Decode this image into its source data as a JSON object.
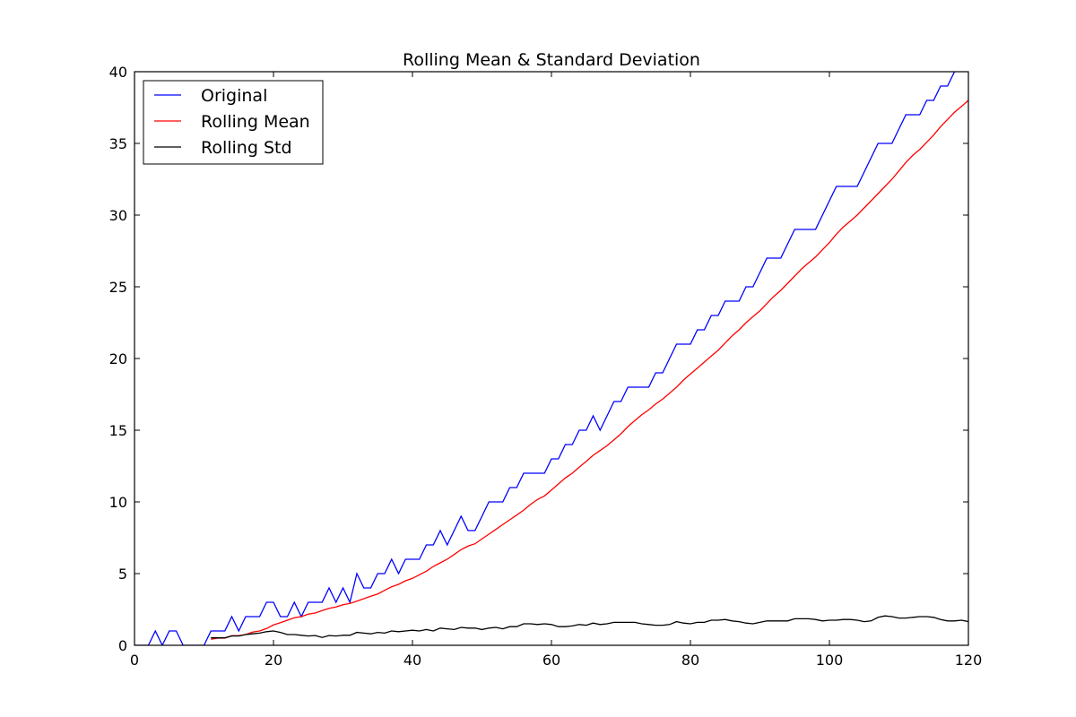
{
  "chart_data": {
    "type": "line",
    "title": "Rolling Mean & Standard Deviation",
    "xlabel": "",
    "ylabel": "",
    "xlim": [
      0,
      120
    ],
    "ylim": [
      0,
      40
    ],
    "xticks": [
      0,
      20,
      40,
      60,
      80,
      100,
      120
    ],
    "yticks": [
      0,
      5,
      10,
      15,
      20,
      25,
      30,
      35,
      40
    ],
    "grid": false,
    "legend_position": "upper-left",
    "series": [
      {
        "name": "Original",
        "color": "#0000ff",
        "x": [
          0,
          1,
          2,
          3,
          4,
          5,
          6,
          7,
          8,
          9,
          10,
          11,
          12,
          13,
          14,
          15,
          16,
          17,
          18,
          19,
          20,
          21,
          22,
          23,
          24,
          25,
          26,
          27,
          28,
          29,
          30,
          31,
          32,
          33,
          34,
          35,
          36,
          37,
          38,
          39,
          40,
          41,
          42,
          43,
          44,
          45,
          46,
          47,
          48,
          49,
          50,
          51,
          52,
          53,
          54,
          55,
          56,
          57,
          58,
          59,
          60,
          61,
          62,
          63,
          64,
          65,
          66,
          67,
          68,
          69,
          70,
          71,
          72,
          73,
          74,
          75,
          76,
          77,
          78,
          79,
          80,
          81,
          82,
          83,
          84,
          85,
          86,
          87,
          88,
          89,
          90,
          91,
          92,
          93,
          94,
          95,
          96,
          97,
          98,
          99,
          100,
          101,
          102,
          103,
          104,
          105,
          106,
          107,
          108,
          109,
          110,
          111,
          112,
          113,
          114,
          115,
          116,
          117,
          118
        ],
        "y": [
          0,
          0,
          0,
          1,
          0,
          1,
          1,
          0,
          0,
          0,
          0,
          1,
          1,
          1,
          2,
          1,
          2,
          2,
          2,
          3,
          3,
          2,
          2,
          3,
          2,
          3,
          3,
          3,
          4,
          3,
          4,
          3,
          5,
          4,
          4,
          5,
          5,
          6,
          5,
          6,
          6,
          6,
          7,
          7,
          8,
          7,
          8,
          9,
          8,
          8,
          9,
          10,
          10,
          10,
          11,
          11,
          12,
          12,
          12,
          12,
          13,
          13,
          14,
          14,
          15,
          15,
          16,
          15,
          16,
          17,
          17,
          18,
          18,
          18,
          18,
          19,
          19,
          20,
          21,
          21,
          21,
          22,
          22,
          23,
          23,
          24,
          24,
          24,
          25,
          25,
          26,
          27,
          27,
          27,
          28,
          29,
          29,
          29,
          29,
          30,
          31,
          32,
          32,
          32,
          32,
          33,
          34,
          35,
          35,
          35,
          36,
          37,
          37,
          37,
          38,
          38,
          39,
          39,
          40
        ]
      },
      {
        "name": "Rolling Mean",
        "color": "#ff0000",
        "x": [
          11,
          12,
          13,
          14,
          15,
          16,
          17,
          18,
          19,
          20,
          21,
          22,
          23,
          24,
          25,
          26,
          27,
          28,
          29,
          30,
          31,
          32,
          33,
          34,
          35,
          36,
          37,
          38,
          39,
          40,
          41,
          42,
          43,
          44,
          45,
          46,
          47,
          48,
          49,
          50,
          51,
          52,
          53,
          54,
          55,
          56,
          57,
          58,
          59,
          60,
          61,
          62,
          63,
          64,
          65,
          66,
          67,
          68,
          69,
          70,
          71,
          72,
          73,
          74,
          75,
          76,
          77,
          78,
          79,
          80,
          81,
          82,
          83,
          84,
          85,
          86,
          87,
          88,
          89,
          90,
          91,
          92,
          93,
          94,
          95,
          96,
          97,
          98,
          99,
          100,
          101,
          102,
          103,
          104,
          105,
          106,
          107,
          108,
          109,
          110,
          111,
          112,
          113,
          114,
          115,
          116,
          117,
          118,
          119,
          120
        ],
        "y": [
          0.42,
          0.5,
          0.5,
          0.67,
          0.67,
          0.75,
          0.92,
          1.0,
          1.17,
          1.42,
          1.58,
          1.75,
          1.92,
          2.0,
          2.17,
          2.25,
          2.42,
          2.58,
          2.67,
          2.83,
          2.92,
          3.08,
          3.25,
          3.42,
          3.58,
          3.83,
          4.08,
          4.25,
          4.5,
          4.67,
          4.92,
          5.17,
          5.5,
          5.75,
          6.0,
          6.33,
          6.67,
          6.92,
          7.08,
          7.42,
          7.75,
          8.08,
          8.42,
          8.75,
          9.08,
          9.42,
          9.83,
          10.17,
          10.42,
          10.83,
          11.25,
          11.67,
          12.0,
          12.42,
          12.83,
          13.25,
          13.58,
          13.92,
          14.33,
          14.75,
          15.25,
          15.67,
          16.08,
          16.42,
          16.83,
          17.17,
          17.58,
          18.0,
          18.5,
          18.92,
          19.33,
          19.75,
          20.17,
          20.58,
          21.08,
          21.58,
          22.0,
          22.5,
          22.92,
          23.33,
          23.83,
          24.33,
          24.75,
          25.25,
          25.75,
          26.25,
          26.67,
          27.08,
          27.58,
          28.08,
          28.67,
          29.17,
          29.58,
          30.0,
          30.5,
          31.0,
          31.5,
          32.0,
          32.5,
          33.08,
          33.67,
          34.17,
          34.58,
          35.08,
          35.58,
          36.17,
          36.67,
          37.17,
          37.58,
          38.0
        ]
      },
      {
        "name": "Rolling Std",
        "color": "#000000",
        "x": [
          11,
          12,
          13,
          14,
          15,
          16,
          17,
          18,
          19,
          20,
          21,
          22,
          23,
          24,
          25,
          26,
          27,
          28,
          29,
          30,
          31,
          32,
          33,
          34,
          35,
          36,
          37,
          38,
          39,
          40,
          41,
          42,
          43,
          44,
          45,
          46,
          47,
          48,
          49,
          50,
          51,
          52,
          53,
          54,
          55,
          56,
          57,
          58,
          59,
          60,
          61,
          62,
          63,
          64,
          65,
          66,
          67,
          68,
          69,
          70,
          71,
          72,
          73,
          74,
          75,
          76,
          77,
          78,
          79,
          80,
          81,
          82,
          83,
          84,
          85,
          86,
          87,
          88,
          89,
          90,
          91,
          92,
          93,
          94,
          95,
          96,
          97,
          98,
          99,
          100,
          101,
          102,
          103,
          104,
          105,
          106,
          107,
          108,
          109,
          110,
          111,
          112,
          113,
          114,
          115,
          116,
          117,
          118,
          119,
          120
        ],
        "y": [
          0.52,
          0.52,
          0.52,
          0.65,
          0.65,
          0.75,
          0.8,
          0.85,
          0.95,
          1.0,
          0.9,
          0.75,
          0.75,
          0.7,
          0.65,
          0.68,
          0.55,
          0.68,
          0.65,
          0.7,
          0.7,
          0.9,
          0.85,
          0.8,
          0.9,
          0.85,
          1.0,
          0.95,
          1.0,
          1.05,
          1.0,
          1.1,
          1.0,
          1.2,
          1.15,
          1.1,
          1.25,
          1.2,
          1.2,
          1.1,
          1.2,
          1.25,
          1.15,
          1.3,
          1.3,
          1.5,
          1.5,
          1.45,
          1.5,
          1.45,
          1.3,
          1.3,
          1.35,
          1.45,
          1.4,
          1.55,
          1.45,
          1.5,
          1.6,
          1.6,
          1.6,
          1.6,
          1.5,
          1.45,
          1.4,
          1.4,
          1.45,
          1.65,
          1.55,
          1.5,
          1.6,
          1.6,
          1.75,
          1.75,
          1.8,
          1.7,
          1.65,
          1.55,
          1.5,
          1.6,
          1.7,
          1.7,
          1.7,
          1.7,
          1.85,
          1.85,
          1.85,
          1.8,
          1.7,
          1.75,
          1.75,
          1.8,
          1.8,
          1.75,
          1.65,
          1.7,
          1.95,
          2.05,
          2.0,
          1.9,
          1.9,
          1.95,
          2.0,
          2.0,
          1.95,
          1.8,
          1.7,
          1.7,
          1.75,
          1.65
        ]
      }
    ]
  }
}
